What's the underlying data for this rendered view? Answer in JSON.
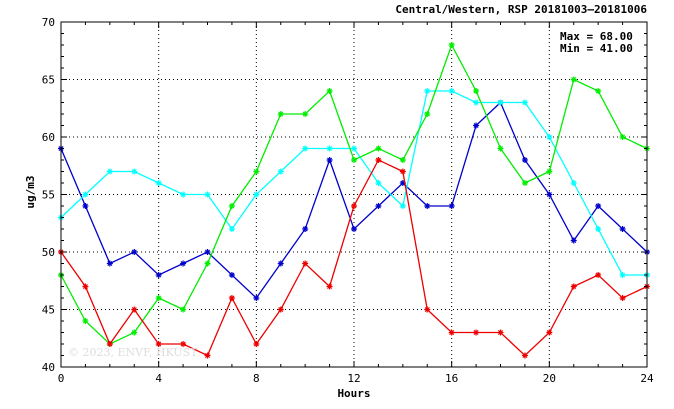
{
  "chart_data": {
    "type": "line",
    "title": "Central/Western, RSP 20181003—20181006",
    "xlabel": "Hours",
    "ylabel": "ug/m3",
    "xlim": [
      0,
      24
    ],
    "ylim": [
      40,
      70
    ],
    "xticks": [
      0,
      4,
      8,
      12,
      16,
      20,
      24
    ],
    "yticks": [
      40,
      45,
      50,
      55,
      60,
      65,
      70
    ],
    "grid": true,
    "annotations": {
      "max": "Max = 68.00",
      "min": "Min = 41.00"
    },
    "watermark": "© 2023, ENVF, HKUST",
    "x": [
      0,
      1,
      2,
      3,
      4,
      5,
      6,
      7,
      8,
      9,
      10,
      11,
      12,
      13,
      14,
      15,
      16,
      17,
      18,
      19,
      20,
      21,
      22,
      23,
      24
    ],
    "series": [
      {
        "color": "#0000cc",
        "values": [
          59,
          54,
          49,
          50,
          48,
          49,
          50,
          48,
          46,
          49,
          52,
          58,
          52,
          54,
          56,
          54,
          54,
          61,
          63,
          58,
          55,
          51,
          54,
          52,
          50
        ]
      },
      {
        "color": "#00ffff",
        "values": [
          53,
          55,
          57,
          57,
          56,
          55,
          55,
          52,
          55,
          57,
          59,
          59,
          59,
          56,
          54,
          64,
          64,
          63,
          63,
          63,
          60,
          56,
          52,
          48,
          48
        ]
      },
      {
        "color": "#00ee00",
        "values": [
          48,
          44,
          42,
          43,
          46,
          45,
          49,
          54,
          57,
          62,
          62,
          64,
          58,
          59,
          58,
          62,
          68,
          64,
          59,
          56,
          57,
          65,
          64,
          60,
          59
        ]
      },
      {
        "color": "#ee0000",
        "values": [
          50,
          47,
          42,
          45,
          42,
          42,
          41,
          46,
          42,
          45,
          49,
          47,
          54,
          58,
          57,
          45,
          43,
          43,
          43,
          41,
          43,
          47,
          48,
          46,
          47
        ]
      }
    ]
  }
}
